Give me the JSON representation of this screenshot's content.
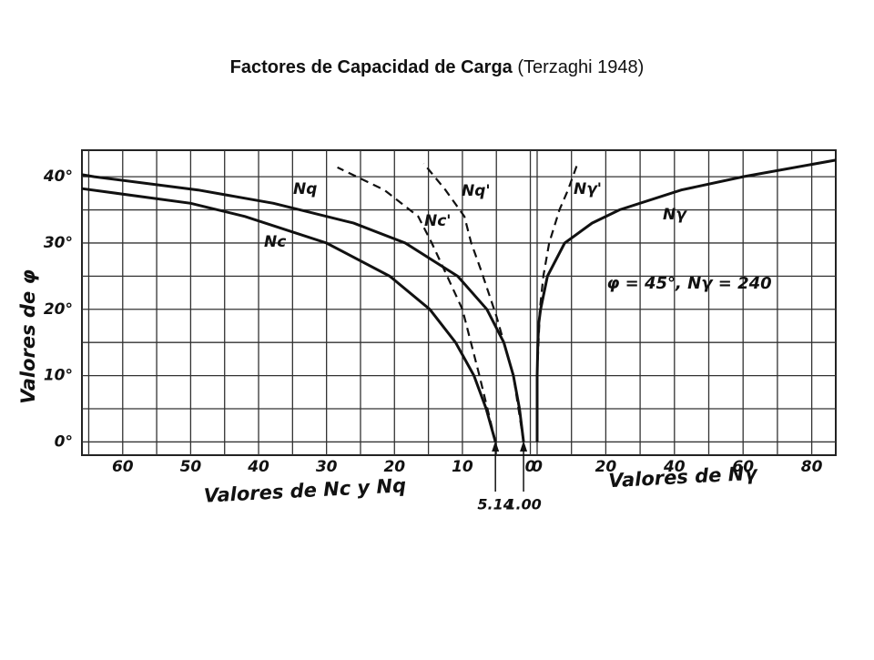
{
  "title": "Factores de Capacidad de Carga",
  "subtitle": "(Terzaghi 1948)",
  "chart_data": [
    {
      "type": "line",
      "xlabel": "Valores de Nc y Nq",
      "ylabel": "Valores de φ",
      "xlim": [
        66,
        -1
      ],
      "xticks": [
        60,
        50,
        40,
        30,
        20,
        10,
        0
      ],
      "xgrid": [
        65,
        60,
        55,
        50,
        45,
        40,
        35,
        30,
        25,
        20,
        15,
        10,
        5,
        0
      ],
      "ylim": [
        -2,
        44
      ],
      "yticks": [
        {
          "value": 0,
          "label": "0°"
        },
        {
          "value": 10,
          "label": "10°"
        },
        {
          "value": 20,
          "label": "20°"
        },
        {
          "value": 30,
          "label": "30°"
        },
        {
          "value": 40,
          "label": "40°"
        }
      ],
      "ygrid": [
        0,
        5,
        10,
        15,
        20,
        25,
        30,
        35,
        40
      ],
      "grid": true,
      "annotations": [
        {
          "text": "5.14",
          "x": 5.14
        },
        {
          "text": "1.00",
          "x": 1.0
        }
      ],
      "series": [
        {
          "name": "Nq",
          "color": "#111111",
          "dashed": false,
          "x": [
            1,
            1.6,
            2.5,
            3.9,
            6.4,
            10.7,
            18.4,
            26,
            37.8,
            48.9,
            64.2,
            66
          ],
          "y": [
            0,
            5,
            10,
            15,
            20,
            25,
            30,
            33,
            36,
            38,
            40,
            40.3
          ]
        },
        {
          "name": "Nc",
          "color": "#111111",
          "dashed": false,
          "x": [
            5.14,
            6.5,
            8.3,
            11,
            14.8,
            20.7,
            30,
            42,
            50,
            66
          ],
          "y": [
            0,
            5,
            10,
            15,
            20,
            25,
            30,
            34,
            36,
            38.2
          ]
        },
        {
          "name": "Nq'",
          "color": "#111111",
          "dashed": true,
          "x": [
            1,
            2.5,
            5,
            7.3,
            8.7,
            9.7,
            12.5,
            15.7
          ],
          "y": [
            0,
            10,
            19,
            26,
            30,
            34,
            38,
            42
          ]
        },
        {
          "name": "Nc'",
          "color": "#111111",
          "dashed": true,
          "x": [
            5.14,
            7.5,
            10,
            12.7,
            14.5,
            16.5,
            21.5,
            28.4
          ],
          "y": [
            0,
            10,
            20,
            26,
            30,
            34,
            38,
            41.4
          ]
        }
      ]
    },
    {
      "type": "line",
      "xlabel": "Valores de Nγ",
      "note": "φ = 45°, Nγ = 240",
      "xlim": [
        0,
        87
      ],
      "xticks": [
        0,
        20,
        40,
        60,
        80
      ],
      "xgrid": [
        0,
        10,
        20,
        30,
        40,
        50,
        60,
        70,
        80
      ],
      "ylim": [
        -2,
        44
      ],
      "ygrid": [
        0,
        5,
        10,
        15,
        20,
        25,
        30,
        35,
        40
      ],
      "grid": true,
      "series": [
        {
          "name": "Nγ'",
          "color": "#111111",
          "dashed": true,
          "x": [
            0,
            0,
            0.8,
            1.8,
            3.5,
            6.5,
            9,
            12
          ],
          "y": [
            0,
            10,
            20,
            25,
            30,
            35,
            38,
            42.3
          ]
        },
        {
          "name": "Nγ",
          "color": "#111111",
          "dashed": false,
          "x": [
            0,
            0,
            0,
            0.2,
            0.5,
            1,
            3,
            8,
            16,
            24,
            42,
            60,
            87
          ],
          "y": [
            0,
            5,
            10,
            15,
            18,
            20,
            25,
            30,
            33,
            35,
            38,
            40,
            42.5
          ]
        }
      ]
    }
  ]
}
